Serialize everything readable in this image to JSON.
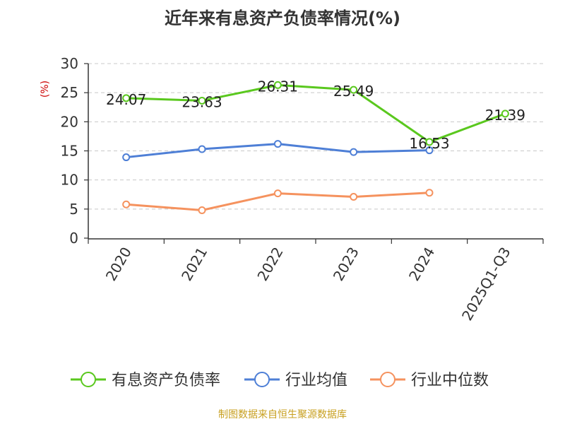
{
  "chart_data": {
    "type": "line",
    "title": "近年来有息资产负债率情况(%)",
    "ylabel": "(%)",
    "ylim": [
      0,
      30
    ],
    "yticks": [
      0,
      5,
      10,
      15,
      20,
      25,
      30
    ],
    "grid": true,
    "legend_position": "bottom",
    "categories": [
      "2020",
      "2021",
      "2022",
      "2023",
      "2024",
      "2025Q1-Q3"
    ],
    "series": [
      {
        "name": "有息资产负债率",
        "color": "#5ac81e",
        "values": [
          24.07,
          23.63,
          26.31,
          25.49,
          16.53,
          21.39
        ],
        "labels": [
          "24.07",
          "23.63",
          "26.31",
          "25.49",
          "16.53",
          "21.39"
        ]
      },
      {
        "name": "行业均值",
        "color": "#4e7fd6",
        "values": [
          13.9,
          15.3,
          16.2,
          14.8,
          15.1,
          null
        ]
      },
      {
        "name": "行业中位数",
        "color": "#f5925e",
        "values": [
          5.8,
          4.8,
          7.7,
          7.1,
          7.8,
          null
        ]
      }
    ],
    "source": "制图数据来自恒生聚源数据库",
    "source_color": "#c8a020",
    "ylabel_color": "#cc0000"
  }
}
